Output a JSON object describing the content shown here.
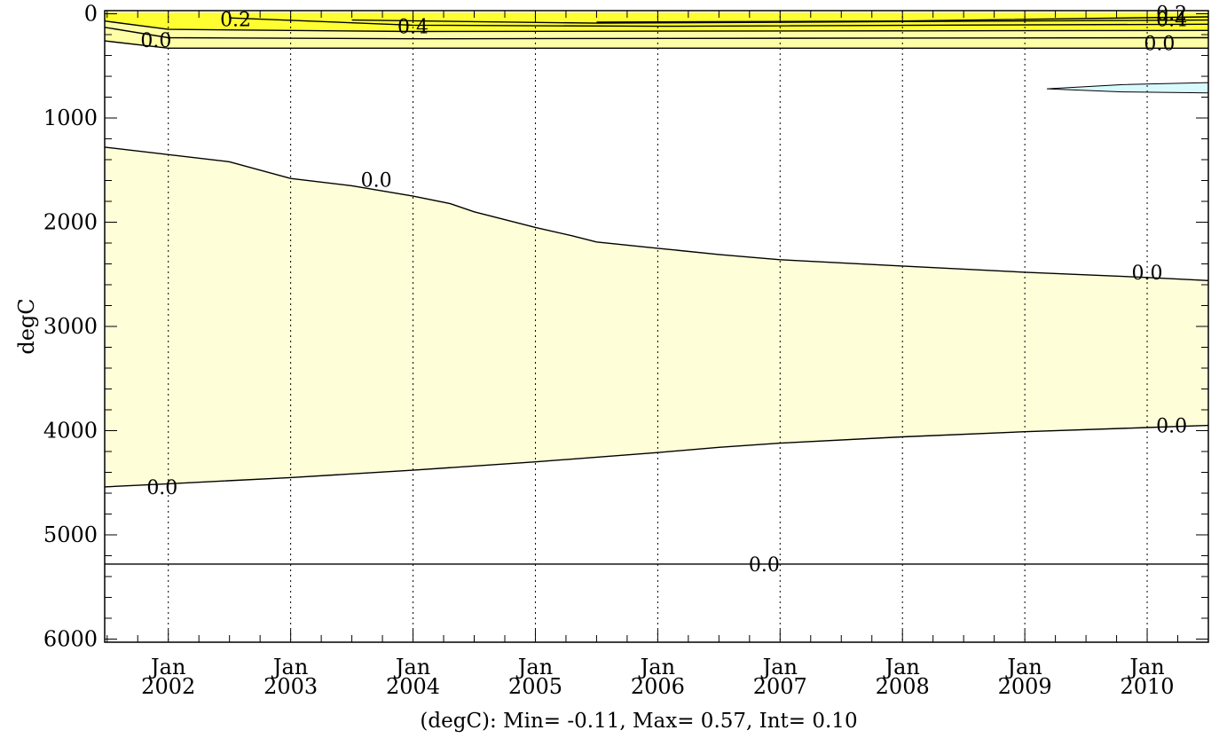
{
  "chart_data": {
    "type": "contour",
    "title": "",
    "ylabel": "degC",
    "caption": "(degC): Min= -0.11, Max= 0.57, Int= 0.10",
    "x_ticks": [
      {
        "month": "Jan",
        "year": "2002",
        "t": 2002.0
      },
      {
        "month": "Jan",
        "year": "2003",
        "t": 2003.0
      },
      {
        "month": "Jan",
        "year": "2004",
        "t": 2004.0
      },
      {
        "month": "Jan",
        "year": "2005",
        "t": 2005.0
      },
      {
        "month": "Jan",
        "year": "2006",
        "t": 2006.0
      },
      {
        "month": "Jan",
        "year": "2007",
        "t": 2007.0
      },
      {
        "month": "Jan",
        "year": "2008",
        "t": 2008.0
      },
      {
        "month": "Jan",
        "year": "2009",
        "t": 2009.0
      },
      {
        "month": "Jan",
        "year": "2010",
        "t": 2010.0
      }
    ],
    "y_ticks": [
      "0",
      "1000",
      "2000",
      "3000",
      "4000",
      "5000",
      "6000"
    ],
    "x_range": [
      2001.48,
      2010.5
    ],
    "y_range": [
      -30,
      6030
    ],
    "y_inverted": true,
    "x_grid": "dotted",
    "colors": {
      "band_0_0_1": "#fefed8",
      "band_0_1_0_2": "#fefea8",
      "band_0_2_plus": "#fefe30",
      "negative": "#d8fafe",
      "line": "#000000"
    },
    "regions": [
      {
        "name": "mid-depth positive band",
        "level_range": [
          0.0,
          0.1
        ],
        "upper_boundary": [
          [
            2001.48,
            1280
          ],
          [
            2002.5,
            1420
          ],
          [
            2003.0,
            1580
          ],
          [
            2003.5,
            1650
          ],
          [
            2004.0,
            1750
          ],
          [
            2004.3,
            1820
          ],
          [
            2004.5,
            1900
          ],
          [
            2005.0,
            2050
          ],
          [
            2005.3,
            2130
          ],
          [
            2005.5,
            2190
          ],
          [
            2006.0,
            2250
          ],
          [
            2006.5,
            2310
          ],
          [
            2007.0,
            2360
          ],
          [
            2008.0,
            2420
          ],
          [
            2009.0,
            2480
          ],
          [
            2010.0,
            2530
          ],
          [
            2010.5,
            2560
          ]
        ],
        "lower_boundary": [
          [
            2001.48,
            4540
          ],
          [
            2002.0,
            4510
          ],
          [
            2003.0,
            4450
          ],
          [
            2004.0,
            4380
          ],
          [
            2005.0,
            4300
          ],
          [
            2006.0,
            4210
          ],
          [
            2006.5,
            4160
          ],
          [
            2007.0,
            4120
          ],
          [
            2008.0,
            4060
          ],
          [
            2009.0,
            4010
          ],
          [
            2010.0,
            3970
          ],
          [
            2010.5,
            3950
          ]
        ]
      },
      {
        "name": "surface positive band",
        "level_range": [
          0.0,
          0.57
        ],
        "upper_boundary": [
          [
            2001.48,
            -10
          ],
          [
            2010.5,
            -10
          ]
        ],
        "lower_boundary": [
          [
            2001.48,
            260
          ],
          [
            2002.0,
            330
          ],
          [
            2010.5,
            330
          ]
        ]
      },
      {
        "name": "negative tongue",
        "level_range": [
          -0.11,
          0.0
        ],
        "polygon": [
          [
            2009.18,
            720
          ],
          [
            2009.8,
            680
          ],
          [
            2010.5,
            660
          ],
          [
            2010.5,
            760
          ],
          [
            2009.8,
            750
          ]
        ]
      }
    ],
    "contour_lines": [
      {
        "level": "0.0",
        "points": [
          [
            2001.48,
            5280
          ],
          [
            2010.5,
            5280
          ]
        ]
      },
      {
        "level": "0.0",
        "points": [
          [
            2001.48,
            4540
          ],
          [
            2002.0,
            4510
          ],
          [
            2003.0,
            4450
          ],
          [
            2004.0,
            4380
          ],
          [
            2005.0,
            4300
          ],
          [
            2006.0,
            4210
          ],
          [
            2006.5,
            4160
          ],
          [
            2007.0,
            4120
          ],
          [
            2008.0,
            4060
          ],
          [
            2009.0,
            4010
          ],
          [
            2010.0,
            3970
          ],
          [
            2010.5,
            3950
          ]
        ]
      },
      {
        "level": "0.0",
        "points": [
          [
            2001.48,
            1280
          ],
          [
            2002.5,
            1420
          ],
          [
            2003.0,
            1580
          ],
          [
            2003.5,
            1650
          ],
          [
            2004.0,
            1750
          ],
          [
            2004.3,
            1820
          ],
          [
            2004.5,
            1900
          ],
          [
            2005.0,
            2050
          ],
          [
            2005.3,
            2130
          ],
          [
            2005.5,
            2190
          ],
          [
            2006.0,
            2250
          ],
          [
            2006.5,
            2310
          ],
          [
            2007.0,
            2360
          ],
          [
            2008.0,
            2420
          ],
          [
            2009.0,
            2480
          ],
          [
            2010.0,
            2530
          ],
          [
            2010.5,
            2560
          ]
        ]
      },
      {
        "level": "0.0",
        "points": [
          [
            2001.48,
            260
          ],
          [
            2002.0,
            330
          ],
          [
            2010.5,
            330
          ]
        ]
      },
      {
        "level": "0.1",
        "points": [
          [
            2001.48,
            130
          ],
          [
            2002.0,
            230
          ],
          [
            2004.0,
            240
          ],
          [
            2010.5,
            230
          ]
        ]
      },
      {
        "level": "0.2",
        "points": [
          [
            2001.48,
            70
          ],
          [
            2002.0,
            150
          ],
          [
            2004.0,
            170
          ],
          [
            2010.5,
            160
          ]
        ]
      },
      {
        "level": "0.3",
        "points": [
          [
            2002.5,
            40
          ],
          [
            2004.0,
            110
          ],
          [
            2006.0,
            120
          ],
          [
            2010.5,
            100
          ]
        ]
      },
      {
        "level": "0.4",
        "points": [
          [
            2003.5,
            60
          ],
          [
            2005.5,
            90
          ],
          [
            2010.5,
            60
          ]
        ]
      },
      {
        "level": "0.5",
        "points": [
          [
            2005.5,
            80
          ],
          [
            2008.0,
            70
          ],
          [
            2010.5,
            30
          ]
        ]
      }
    ],
    "contour_labels": [
      {
        "text": "0.2",
        "t": 2002.55,
        "d": 50
      },
      {
        "text": "0.4",
        "t": 2004.0,
        "d": 120
      },
      {
        "text": "0.0",
        "t": 2001.9,
        "d": 250
      },
      {
        "text": "0.2",
        "t": 2010.2,
        "d": -10
      },
      {
        "text": "0.4",
        "t": 2010.2,
        "d": 50
      },
      {
        "text": "0.0",
        "t": 2010.1,
        "d": 280
      },
      {
        "text": "0.0",
        "t": 2003.7,
        "d": 1590
      },
      {
        "text": "0.0",
        "t": 2010.0,
        "d": 2480
      },
      {
        "text": "0.0",
        "t": 2010.2,
        "d": 3950
      },
      {
        "text": "0.0",
        "t": 2001.95,
        "d": 4540
      },
      {
        "text": "0.0",
        "t": 2006.87,
        "d": 5280
      }
    ]
  }
}
